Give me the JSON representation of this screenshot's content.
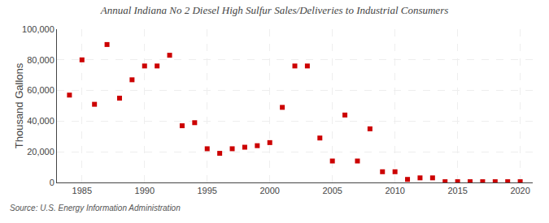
{
  "chart_data": {
    "type": "scatter",
    "title": "Annual Indiana No 2 Diesel High Sulfur Sales/Deliveries to Industrial Consumers",
    "ylabel": "Thousand Gallons",
    "annotations": [
      "Source: U.S. Energy Information Administration"
    ],
    "x": [
      1984,
      1985,
      1986,
      1987,
      1988,
      1989,
      1990,
      1991,
      1992,
      1993,
      1994,
      1995,
      1996,
      1997,
      1998,
      1999,
      2000,
      2001,
      2002,
      2003,
      2004,
      2005,
      2006,
      2007,
      2008,
      2009,
      2010,
      2011,
      2012,
      2013,
      2014,
      2015,
      2016,
      2017,
      2018,
      2019,
      2020
    ],
    "values": [
      57000,
      80000,
      51000,
      90000,
      55000,
      67000,
      76000,
      76000,
      83000,
      37000,
      39000,
      22000,
      19000,
      22000,
      23000,
      24000,
      26000,
      49000,
      76000,
      76000,
      29000,
      14000,
      44000,
      14000,
      35000,
      7000,
      7000,
      2000,
      3000,
      3000,
      500,
      500,
      500,
      500,
      500,
      500,
      500
    ],
    "color": "#cc0000",
    "marker": "square",
    "xlim": [
      1983,
      2021
    ],
    "xticks": [
      1985,
      1990,
      1995,
      2000,
      2005,
      2010,
      2015,
      2020
    ],
    "ylim": [
      0,
      100000
    ],
    "yticks": [
      0,
      {
        "value": 20000,
        "label": "20,000"
      },
      {
        "value": 40000,
        "label": "40,000"
      },
      {
        "value": 60000,
        "label": "60,000"
      },
      {
        "value": 80000,
        "label": "80,000"
      },
      {
        "value": 100000,
        "label": "100,000"
      }
    ],
    "grid": true
  }
}
